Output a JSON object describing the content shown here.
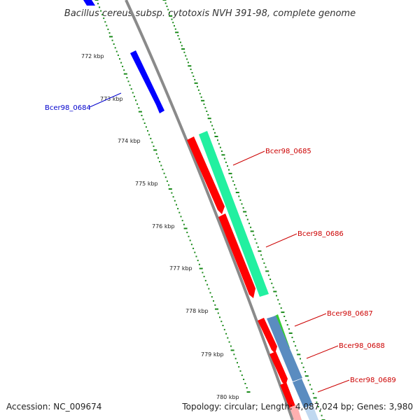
{
  "title": "Bacillus cereus subsp. cytotoxis NVH 391-98, complete genome",
  "footer": {
    "accession": "Accession: NC_009674",
    "topology": "Topology: circular; Length: 4,087,024 bp; Genes: 3,980"
  },
  "colors": {
    "backbone": "#8a8a8a",
    "ticks": "#1a8a1a",
    "blue_gene": "#0000ff",
    "red_gene": "#ff0000",
    "teal_gene": "#22f0a0",
    "green_gene": "#33cc33",
    "steel_gene": "#5a8cc0",
    "blue_label": "#0000cc",
    "red_label": "#cc0000"
  },
  "kbp_ticks": [
    "772 kbp",
    "773 kbp",
    "774 kbp",
    "775 kbp",
    "776 kbp",
    "777 kbp",
    "778 kbp",
    "779 kbp",
    "780 kbp"
  ],
  "gene_labels": [
    {
      "text": "Bcer98_0684",
      "color": "blue"
    },
    {
      "text": "Bcer98_0685",
      "color": "red"
    },
    {
      "text": "Bcer98_0686",
      "color": "red"
    },
    {
      "text": "Bcer98_0687",
      "color": "red"
    },
    {
      "text": "Bcer98_0688",
      "color": "red"
    },
    {
      "text": "Bcer98_0689",
      "color": "red"
    }
  ]
}
